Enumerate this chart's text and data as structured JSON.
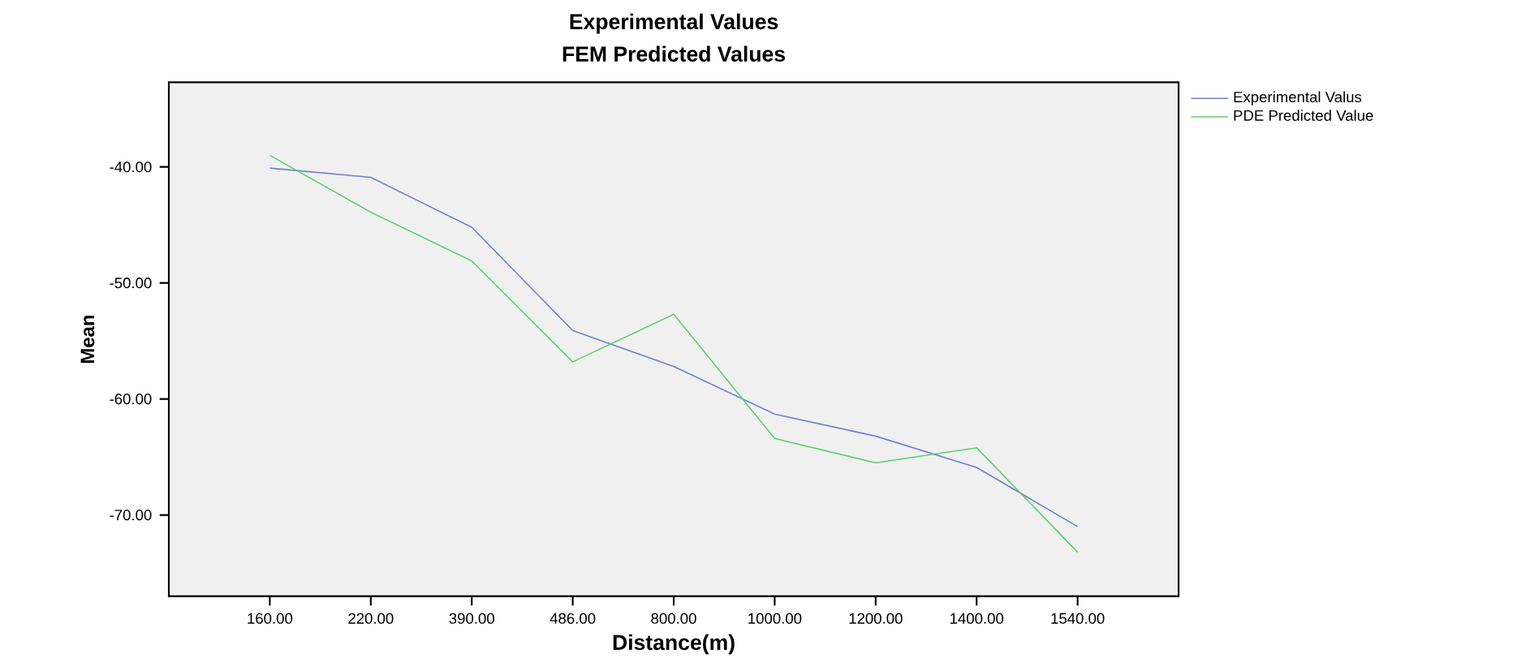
{
  "chart_data": {
    "type": "line",
    "title": "Experimental Values",
    "subtitle": "FEM Predicted Values",
    "xlabel": "Distance(m)",
    "ylabel": "Mean",
    "categories": [
      "160.00",
      "220.00",
      "390.00",
      "486.00",
      "800.00",
      "1000.00",
      "1200.00",
      "1400.00",
      "1540.00"
    ],
    "series": [
      {
        "name": "Experimental Valus",
        "color": "#6f7fcf",
        "values": [
          -40.1,
          -40.9,
          -45.2,
          -54.1,
          -57.2,
          -61.3,
          -63.2,
          -65.9,
          -71.0
        ]
      },
      {
        "name": "PDE  Predicted Value",
        "color": "#5fcf6f",
        "values": [
          -39.0,
          -43.9,
          -48.1,
          -56.8,
          -52.7,
          -63.4,
          -65.5,
          -64.2,
          -73.2
        ]
      }
    ],
    "ylim": [
      -77,
      -32.7
    ],
    "yticks": [
      {
        "value": -70,
        "label": "-70.00"
      },
      {
        "value": -60,
        "label": "-60.00"
      },
      {
        "value": -50,
        "label": "-50.00"
      },
      {
        "value": -40,
        "label": "-40.00"
      }
    ],
    "legend": "top right",
    "grid": false,
    "marker": "none",
    "line_style": "solid"
  }
}
